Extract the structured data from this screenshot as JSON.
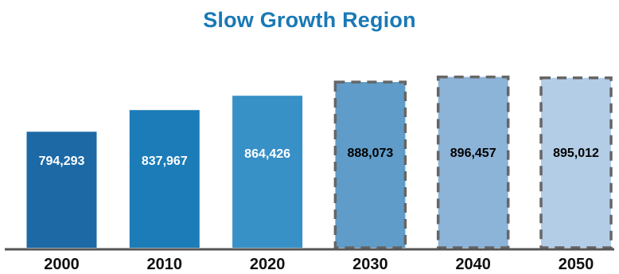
{
  "chart_data": {
    "type": "bar",
    "title": "Slow Growth Region",
    "categories": [
      "2000",
      "2010",
      "2020",
      "2030",
      "2040",
      "2050"
    ],
    "values": [
      794293,
      837967,
      864426,
      888073,
      896457,
      895012
    ],
    "value_labels": [
      "794,293",
      "837,967",
      "864,426",
      "888,073",
      "896,457",
      "895,012"
    ],
    "projected": [
      false,
      false,
      false,
      true,
      true,
      true
    ],
    "bar_colors": [
      "#1c69a6",
      "#1b7cb8",
      "#3790c6",
      "#5f9cc9",
      "#8cb3d8",
      "#b3cde6"
    ],
    "label_colors": [
      "#ffffff",
      "#ffffff",
      "#ffffff",
      "#000000",
      "#000000",
      "#000000"
    ],
    "title_color": "#1a79b6",
    "projection_border_color": "#666666",
    "axis_color": "#555555",
    "xlabel": "",
    "ylabel": "",
    "ylim": [
      0,
      950000
    ],
    "grid": false,
    "legend": "none"
  }
}
